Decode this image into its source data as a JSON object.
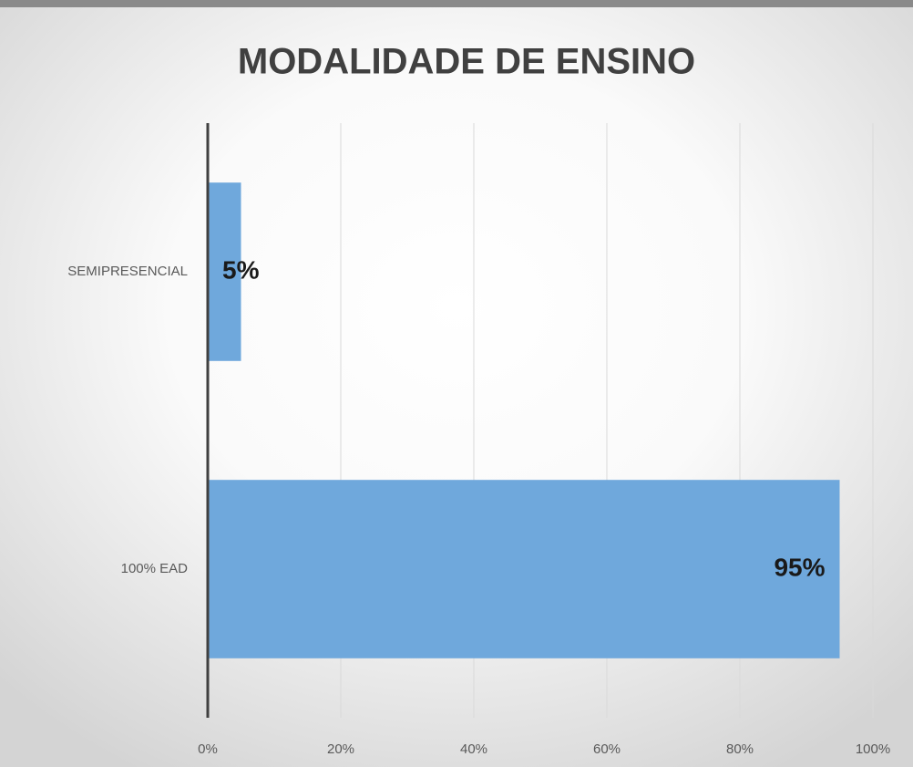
{
  "chart_data": {
    "type": "bar",
    "orientation": "horizontal",
    "title": "MODALIDADE DE ENSINO",
    "categories": [
      "SEMIPRESENCIAL",
      "100% EAD"
    ],
    "values": [
      5,
      95
    ],
    "value_labels": [
      "5%",
      "95%"
    ],
    "color": "#6fa8dc",
    "xlim": [
      0,
      100
    ],
    "xticks": [
      {
        "value": 0,
        "label": "0%"
      },
      {
        "value": 20,
        "label": "20%"
      },
      {
        "value": 40,
        "label": "40%"
      },
      {
        "value": 60,
        "label": "60%"
      },
      {
        "value": 80,
        "label": "80%"
      },
      {
        "value": 100,
        "label": "100%"
      }
    ],
    "grid": true
  }
}
